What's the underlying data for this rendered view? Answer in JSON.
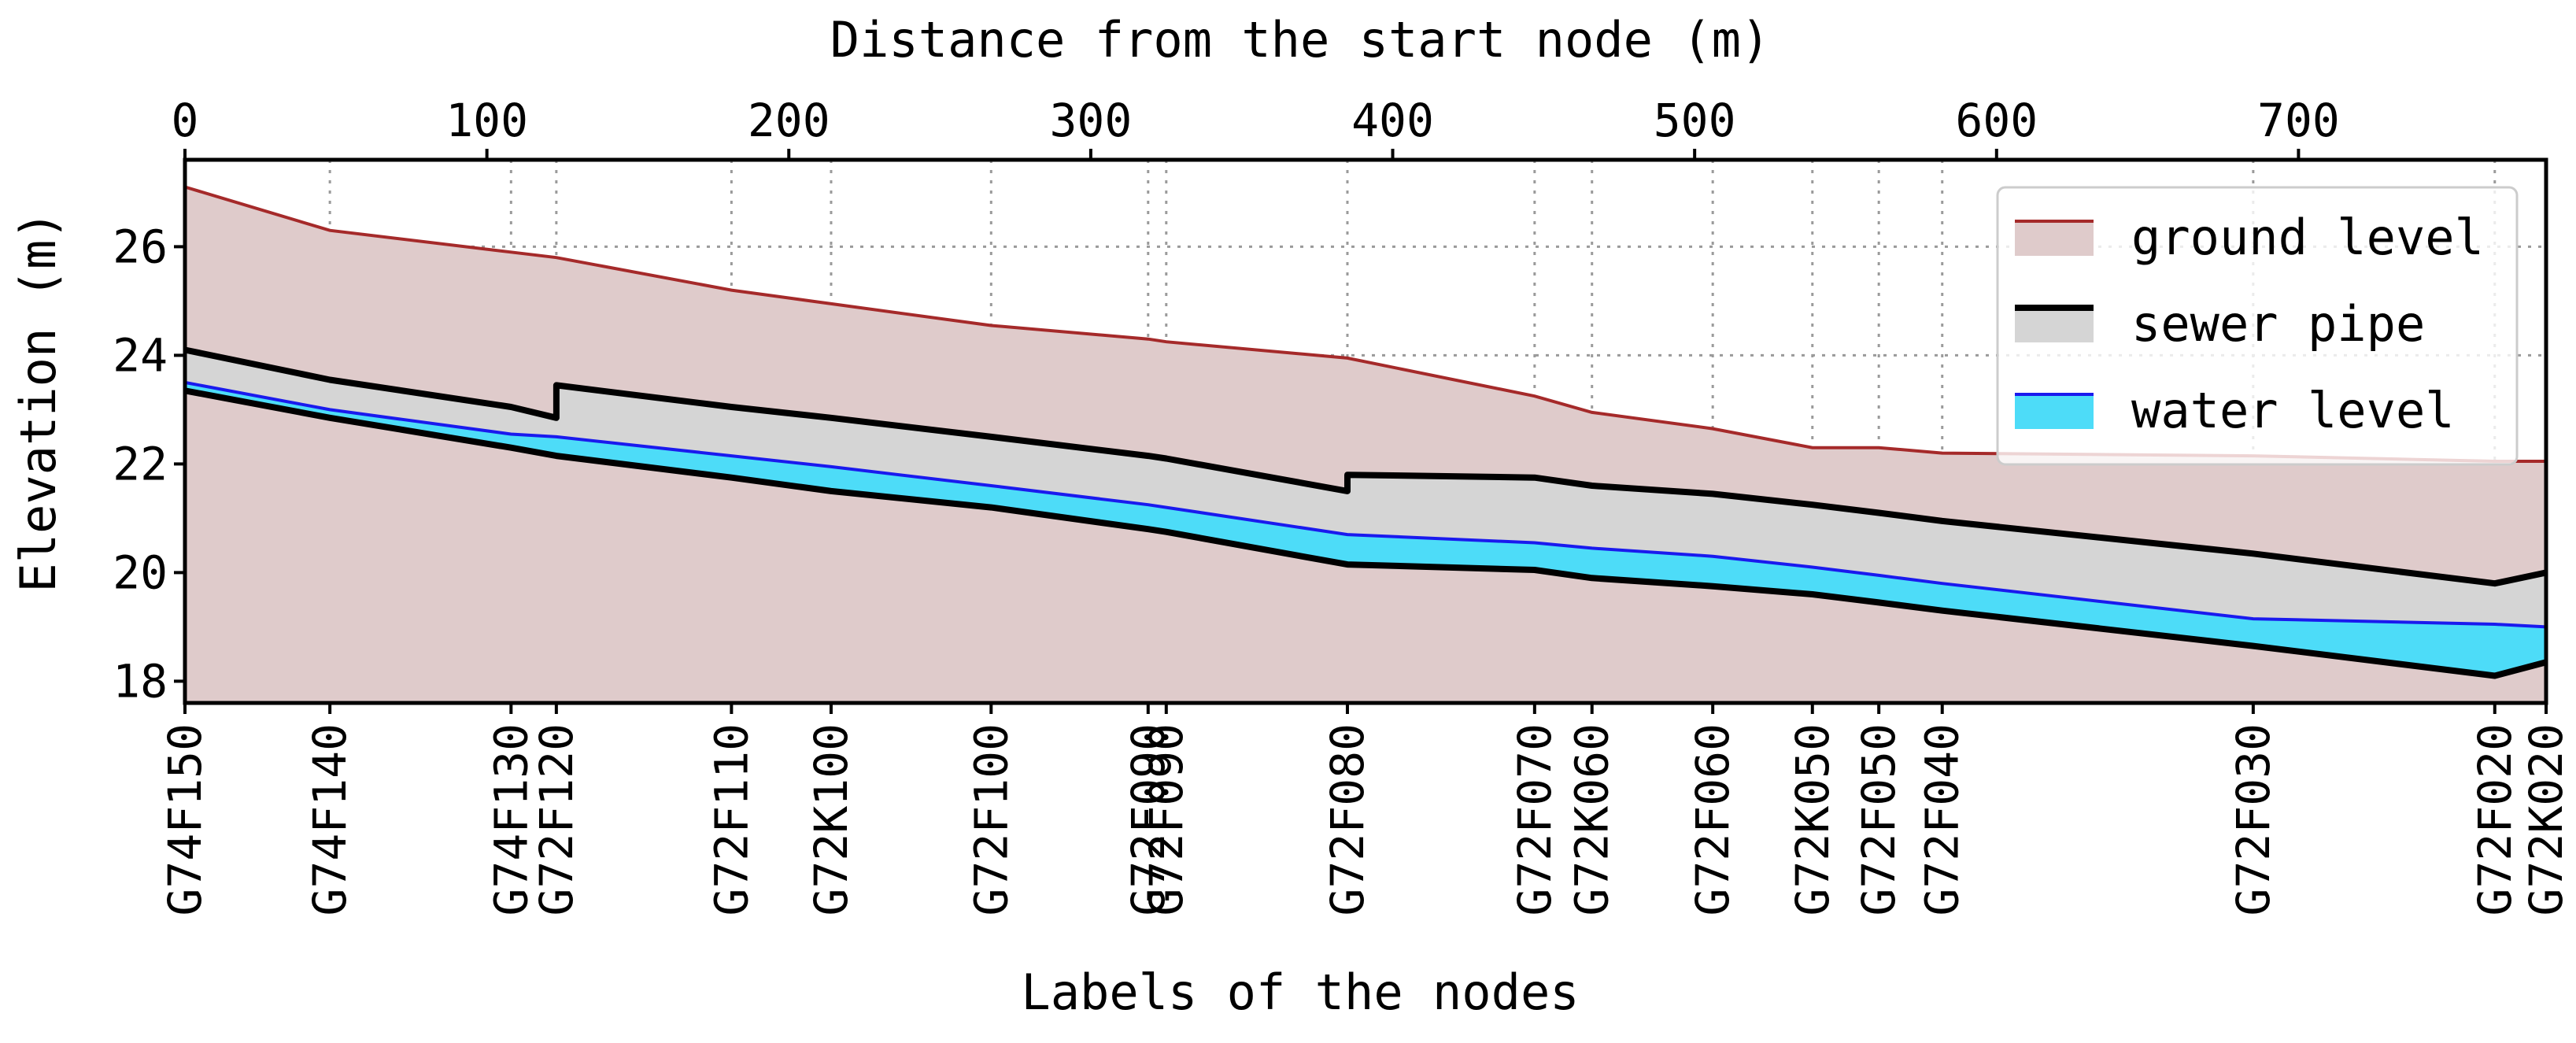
{
  "chart_data": {
    "type": "area",
    "title": "",
    "xlabel_top": "Distance from the start node (m)",
    "xlabel_bottom": "Labels of the nodes",
    "ylabel": "Elevation (m)",
    "xlim": [
      0,
      782
    ],
    "ylim": [
      17.6,
      27.6
    ],
    "x_ticks": [
      0,
      100,
      200,
      300,
      400,
      500,
      600,
      700
    ],
    "y_ticks": [
      18,
      20,
      22,
      24,
      26
    ],
    "grid": true,
    "legend_position": "top-right",
    "nodes": [
      {
        "label": "G74F150",
        "x": 0
      },
      {
        "label": "G74F140",
        "x": 48
      },
      {
        "label": "G74F130",
        "x": 108
      },
      {
        "label": "G72F120",
        "x": 123
      },
      {
        "label": "G72F110",
        "x": 181
      },
      {
        "label": "G72K100",
        "x": 214
      },
      {
        "label": "G72F100",
        "x": 267
      },
      {
        "label": "G72F090",
        "x": 319
      },
      {
        "label": "G72F090",
        "x": 325
      },
      {
        "label": "G72F080",
        "x": 385
      },
      {
        "label": "G72F070",
        "x": 447
      },
      {
        "label": "G72K060",
        "x": 466
      },
      {
        "label": "G72F060",
        "x": 506
      },
      {
        "label": "G72K050",
        "x": 539
      },
      {
        "label": "G72F050",
        "x": 561
      },
      {
        "label": "G72F040",
        "x": 582
      },
      {
        "label": "G72F030",
        "x": 685
      },
      {
        "label": "G72F020",
        "x": 765
      },
      {
        "label": "G72K020",
        "x": 782
      }
    ],
    "series": [
      {
        "name": "ground level",
        "color": "#a52a2a",
        "fill": "#dfcbcb",
        "points": [
          [
            0,
            27.1
          ],
          [
            48,
            26.3
          ],
          [
            108,
            25.9
          ],
          [
            123,
            25.8
          ],
          [
            181,
            25.2
          ],
          [
            214,
            24.95
          ],
          [
            267,
            24.55
          ],
          [
            319,
            24.3
          ],
          [
            325,
            24.25
          ],
          [
            385,
            23.95
          ],
          [
            447,
            23.25
          ],
          [
            466,
            22.95
          ],
          [
            506,
            22.65
          ],
          [
            539,
            22.3
          ],
          [
            561,
            22.3
          ],
          [
            582,
            22.2
          ],
          [
            685,
            22.15
          ],
          [
            765,
            22.05
          ],
          [
            782,
            22.05
          ]
        ]
      },
      {
        "name": "sewer pipe",
        "color": "#000000",
        "fill": "#d5d5d5",
        "top": [
          [
            0,
            24.1
          ],
          [
            48,
            23.55
          ],
          [
            108,
            23.05
          ],
          [
            123,
            22.85
          ],
          [
            123,
            23.45
          ],
          [
            181,
            23.05
          ],
          [
            214,
            22.85
          ],
          [
            267,
            22.5
          ],
          [
            319,
            22.15
          ],
          [
            325,
            22.1
          ],
          [
            385,
            21.5
          ],
          [
            385,
            21.8
          ],
          [
            447,
            21.75
          ],
          [
            466,
            21.6
          ],
          [
            506,
            21.45
          ],
          [
            539,
            21.25
          ],
          [
            561,
            21.1
          ],
          [
            582,
            20.95
          ],
          [
            685,
            20.35
          ],
          [
            765,
            19.8
          ],
          [
            782,
            20.0
          ]
        ],
        "bottom": [
          [
            0,
            23.35
          ],
          [
            48,
            22.85
          ],
          [
            108,
            22.3
          ],
          [
            123,
            22.15
          ],
          [
            181,
            21.75
          ],
          [
            214,
            21.5
          ],
          [
            267,
            21.2
          ],
          [
            319,
            20.8
          ],
          [
            325,
            20.75
          ],
          [
            385,
            20.15
          ],
          [
            447,
            20.05
          ],
          [
            466,
            19.9
          ],
          [
            506,
            19.75
          ],
          [
            539,
            19.6
          ],
          [
            561,
            19.45
          ],
          [
            582,
            19.3
          ],
          [
            685,
            18.65
          ],
          [
            765,
            18.1
          ],
          [
            782,
            18.35
          ]
        ]
      },
      {
        "name": "water level",
        "color": "#1a1aee",
        "fill": "#4ddcf8",
        "points": [
          [
            0,
            23.5
          ],
          [
            48,
            23.0
          ],
          [
            108,
            22.55
          ],
          [
            123,
            22.5
          ],
          [
            181,
            22.15
          ],
          [
            214,
            21.95
          ],
          [
            267,
            21.6
          ],
          [
            319,
            21.25
          ],
          [
            325,
            21.2
          ],
          [
            385,
            20.7
          ],
          [
            447,
            20.55
          ],
          [
            466,
            20.45
          ],
          [
            506,
            20.3
          ],
          [
            539,
            20.1
          ],
          [
            561,
            19.95
          ],
          [
            582,
            19.8
          ],
          [
            685,
            19.15
          ],
          [
            765,
            19.05
          ],
          [
            782,
            19.0
          ]
        ]
      }
    ],
    "legend": [
      {
        "label": "ground level",
        "line": "#a52a2a",
        "patch": "#dfcbcb"
      },
      {
        "label": "sewer pipe",
        "line": "#000000",
        "patch": "#d5d5d5"
      },
      {
        "label": "water level",
        "line": "#1a1aee",
        "patch": "#4ddcf8"
      }
    ]
  }
}
